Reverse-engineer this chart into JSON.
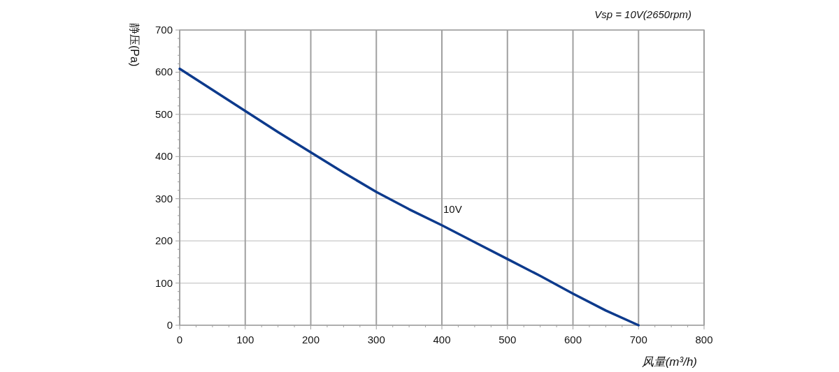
{
  "chart_data": {
    "type": "line",
    "xlabel": "风量(m³/h)",
    "ylabel": "静压(Pa)",
    "annotations": [
      "Vsp = 10V(2650rpm)"
    ],
    "x": [
      0,
      50,
      100,
      150,
      200,
      250,
      300,
      350,
      400,
      450,
      500,
      550,
      600,
      650,
      700
    ],
    "series": [
      {
        "name": "10V",
        "color": "#0d3a8c",
        "values": [
          608,
          558,
          508,
          458,
          410,
          362,
          316,
          275,
          237,
          197,
          157,
          117,
          75,
          35,
          0
        ]
      }
    ],
    "xlim": [
      0,
      800
    ],
    "ylim": [
      0,
      700
    ],
    "xticks": [
      0,
      100,
      200,
      300,
      400,
      500,
      600,
      700,
      800
    ],
    "yticks": [
      0,
      100,
      200,
      300,
      400,
      500,
      600,
      700
    ],
    "grid": true,
    "marker": "none",
    "line_style": "solid"
  }
}
